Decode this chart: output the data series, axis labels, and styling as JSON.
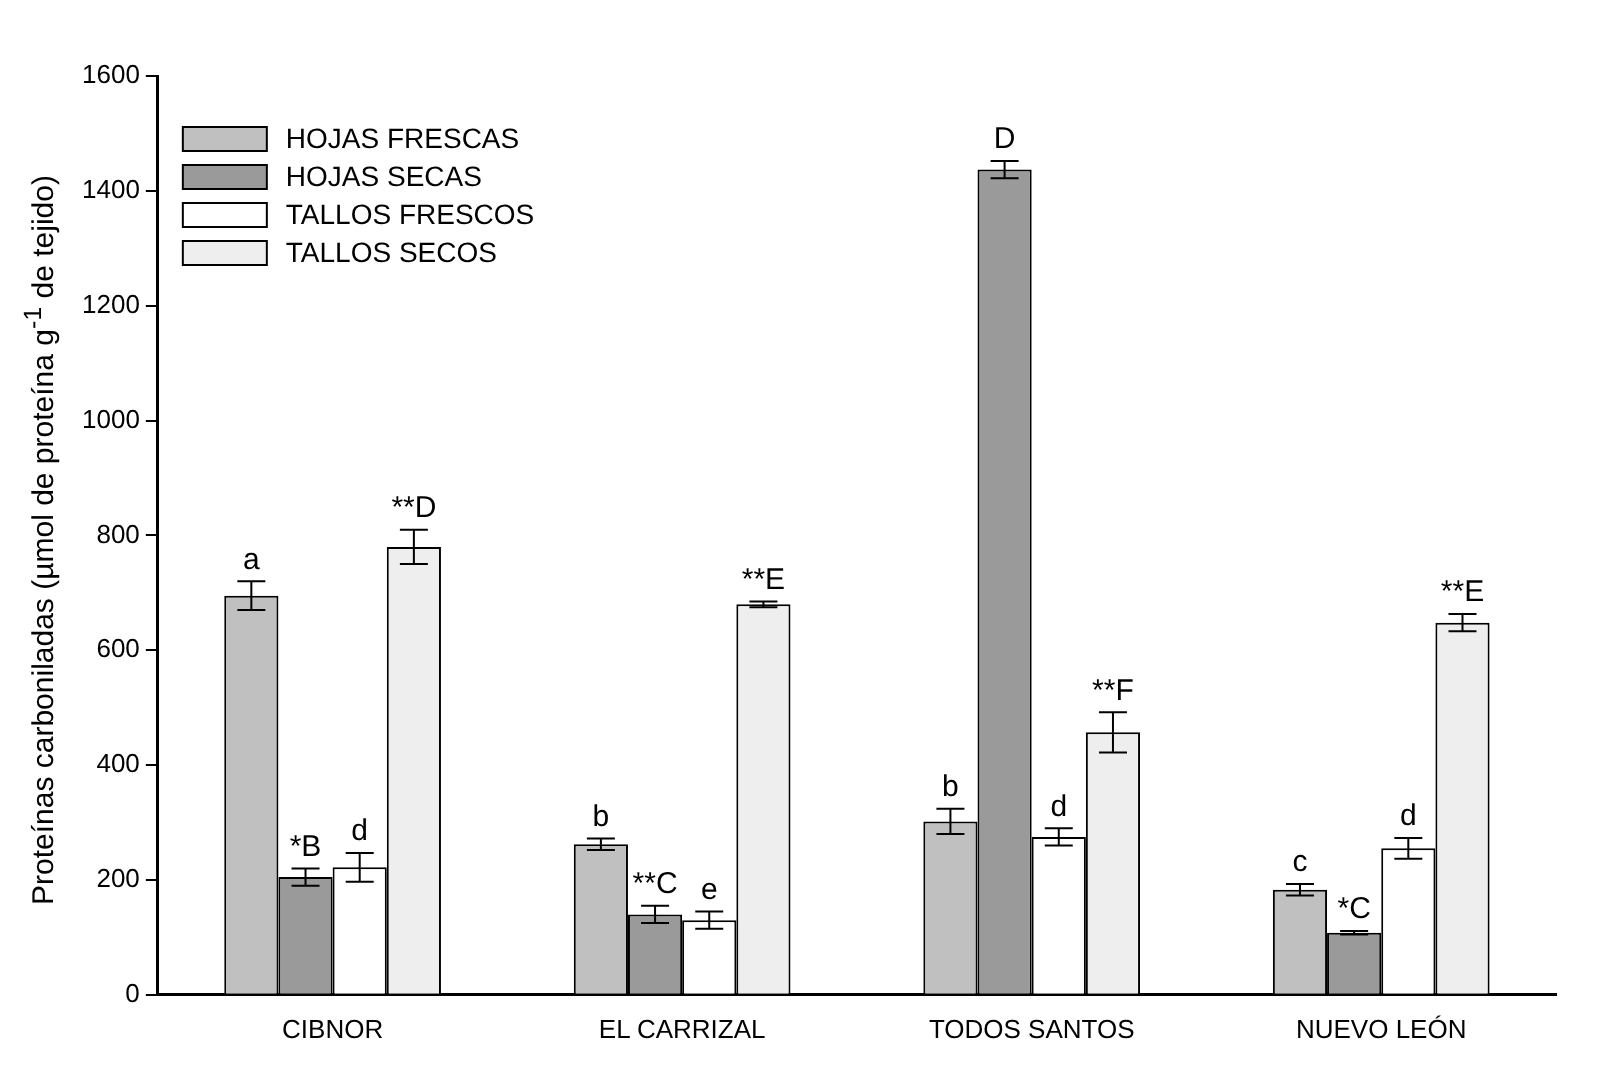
{
  "chart_data": {
    "type": "bar",
    "ylabel": "Proteínas carboniladas (µmol de proteína g$^{-1}$ de tejido)",
    "categories": [
      "CIBNOR",
      "EL CARRIZAL",
      "TODOS SANTOS",
      "NUEVO LEÓN"
    ],
    "series": [
      {
        "name": "HOJAS FRESCAS",
        "color": "#c0c0c0",
        "values": [
          695,
          262,
          302,
          183
        ],
        "errors": [
          25,
          10,
          22,
          10
        ],
        "value_labels": [
          "a",
          "b",
          "b",
          "c"
        ]
      },
      {
        "name": "HOJAS SECAS",
        "color": "#9a9a9a",
        "values": [
          205,
          140,
          1437,
          108
        ],
        "errors": [
          15,
          15,
          15,
          3
        ],
        "value_labels": [
          "*B",
          "**C",
          "D",
          "*C"
        ]
      },
      {
        "name": "TALLOS FRESCOS",
        "color": "#ffffff",
        "values": [
          222,
          130,
          275,
          255
        ],
        "errors": [
          25,
          15,
          15,
          18
        ],
        "value_labels": [
          "d",
          "e",
          "d",
          "d"
        ]
      },
      {
        "name": "TALLOS SECOS",
        "color": "#eeeeee",
        "values": [
          780,
          680,
          457,
          648
        ],
        "errors": [
          30,
          5,
          35,
          15
        ],
        "value_labels": [
          "**D",
          "**E",
          "**F",
          "**E"
        ]
      }
    ],
    "ylim": [
      0,
      1600
    ],
    "yticks": [
      0,
      200,
      400,
      600,
      800,
      1000,
      1200,
      1400,
      1600
    ],
    "grid": false,
    "legend": "top left"
  }
}
